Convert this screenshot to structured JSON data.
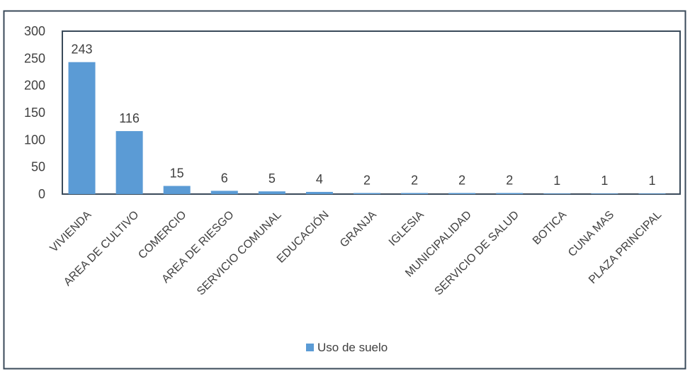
{
  "chart_data": {
    "type": "bar",
    "categories": [
      "VIVIENDA",
      "AREA DE CULTIVO",
      "COMERCIO",
      "AREA DE RIESGO",
      "SERVICIO COMUNAL",
      "EDUCACIÓN",
      "GRANJA",
      "IGLESIA",
      "MUNICIPALIDAD",
      "SERVICIO DE SALUD",
      "BOTICA",
      "CUNA MAS",
      "PLAZA PRINCIPAL"
    ],
    "series": [
      {
        "name": "Uso de suelo",
        "values": [
          243,
          116,
          15,
          6,
          5,
          4,
          2,
          2,
          2,
          2,
          1,
          1,
          1
        ]
      }
    ],
    "yticks": [
      0,
      50,
      100,
      150,
      200,
      250,
      300
    ],
    "ylim": [
      0,
      300
    ],
    "grid": false,
    "legend_position": "bottom",
    "colors": {
      "bar": "#5b9bd5",
      "axis": "#3a4a5a",
      "text": "#404040"
    }
  }
}
